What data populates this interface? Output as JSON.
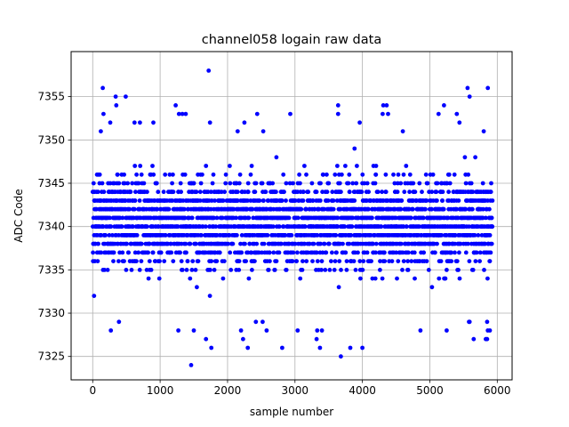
{
  "chart_data": {
    "type": "scatter",
    "title": "channel058 logain raw data",
    "xlabel": "sample number",
    "ylabel": "ADC Code",
    "xlim": [
      -320,
      6220
    ],
    "ylim": [
      7322.3,
      7360.2
    ],
    "xticks": [
      0,
      1000,
      2000,
      3000,
      4000,
      5000,
      6000
    ],
    "yticks": [
      7325,
      7330,
      7335,
      7340,
      7345,
      7350,
      7355
    ],
    "grid": true,
    "legend": "none",
    "marker_color": "#0000ff",
    "series": [
      {
        "sample_count": 5930,
        "band_levels": [
          7331,
          7332,
          7333,
          7334,
          7335,
          7336,
          7337,
          7338,
          7339,
          7340,
          7341,
          7342,
          7343,
          7344,
          7345,
          7346,
          7347,
          7348,
          7349,
          7350
        ],
        "outliers": [
          {
            "x": 1720,
            "y": 7358
          },
          {
            "x": 150,
            "y": 7356
          },
          {
            "x": 5560,
            "y": 7356
          },
          {
            "x": 5860,
            "y": 7356
          },
          {
            "x": 340,
            "y": 7355
          },
          {
            "x": 490,
            "y": 7355
          },
          {
            "x": 5590,
            "y": 7355
          },
          {
            "x": 350,
            "y": 7354
          },
          {
            "x": 1230,
            "y": 7354
          },
          {
            "x": 3640,
            "y": 7354
          },
          {
            "x": 4310,
            "y": 7354
          },
          {
            "x": 4360,
            "y": 7354
          },
          {
            "x": 5210,
            "y": 7354
          },
          {
            "x": 160,
            "y": 7353
          },
          {
            "x": 1280,
            "y": 7353
          },
          {
            "x": 1330,
            "y": 7353
          },
          {
            "x": 1380,
            "y": 7353
          },
          {
            "x": 2440,
            "y": 7353
          },
          {
            "x": 2930,
            "y": 7353
          },
          {
            "x": 3640,
            "y": 7353
          },
          {
            "x": 4300,
            "y": 7353
          },
          {
            "x": 4380,
            "y": 7353
          },
          {
            "x": 5130,
            "y": 7353
          },
          {
            "x": 5400,
            "y": 7353
          },
          {
            "x": 260,
            "y": 7352
          },
          {
            "x": 620,
            "y": 7352
          },
          {
            "x": 700,
            "y": 7352
          },
          {
            "x": 900,
            "y": 7352
          },
          {
            "x": 1740,
            "y": 7352
          },
          {
            "x": 2250,
            "y": 7352
          },
          {
            "x": 3960,
            "y": 7352
          },
          {
            "x": 5440,
            "y": 7352
          },
          {
            "x": 120,
            "y": 7351
          },
          {
            "x": 2150,
            "y": 7351
          },
          {
            "x": 2530,
            "y": 7351
          },
          {
            "x": 4600,
            "y": 7351
          },
          {
            "x": 5800,
            "y": 7351
          },
          {
            "x": 1500,
            "y": 7328
          },
          {
            "x": 2200,
            "y": 7328
          },
          {
            "x": 2580,
            "y": 7328
          },
          {
            "x": 3040,
            "y": 7328
          },
          {
            "x": 3330,
            "y": 7328
          },
          {
            "x": 3400,
            "y": 7328
          },
          {
            "x": 4860,
            "y": 7328
          },
          {
            "x": 5250,
            "y": 7328
          },
          {
            "x": 5860,
            "y": 7328
          },
          {
            "x": 5890,
            "y": 7328
          },
          {
            "x": 1270,
            "y": 7328
          },
          {
            "x": 270,
            "y": 7328
          },
          {
            "x": 1680,
            "y": 7327
          },
          {
            "x": 2230,
            "y": 7327
          },
          {
            "x": 3320,
            "y": 7327
          },
          {
            "x": 5850,
            "y": 7327
          },
          {
            "x": 5830,
            "y": 7327
          },
          {
            "x": 5650,
            "y": 7327
          },
          {
            "x": 1760,
            "y": 7326
          },
          {
            "x": 2300,
            "y": 7326
          },
          {
            "x": 2810,
            "y": 7326
          },
          {
            "x": 3370,
            "y": 7326
          },
          {
            "x": 3820,
            "y": 7326
          },
          {
            "x": 4000,
            "y": 7326
          },
          {
            "x": 3680,
            "y": 7325
          },
          {
            "x": 1460,
            "y": 7324
          },
          {
            "x": 5590,
            "y": 7329
          },
          {
            "x": 5850,
            "y": 7329
          },
          {
            "x": 5580,
            "y": 7329
          },
          {
            "x": 390,
            "y": 7329
          },
          {
            "x": 2420,
            "y": 7329
          },
          {
            "x": 2520,
            "y": 7329
          }
        ]
      }
    ]
  }
}
